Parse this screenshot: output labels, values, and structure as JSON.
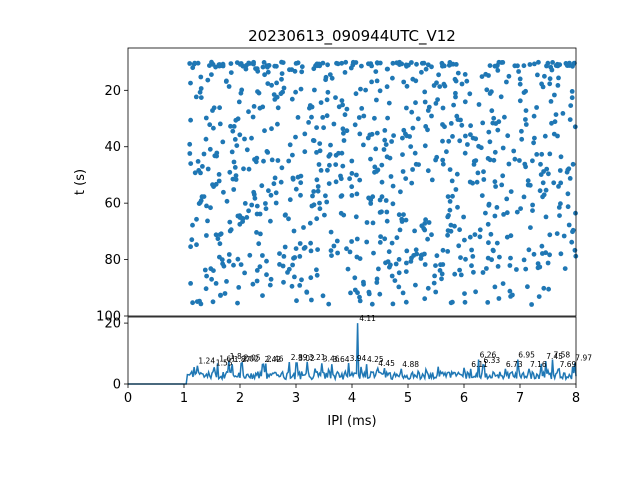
{
  "chart_data": [
    {
      "type": "scatter",
      "title": "20230613_090944UTC_V12",
      "xlabel": "",
      "ylabel": "t (s)",
      "xlim": [
        0,
        8
      ],
      "ylim": [
        100,
        5
      ],
      "y_inverted": true,
      "yticks": [
        "20",
        "40",
        "60",
        "80",
        "100"
      ],
      "marker_color": "#1f77b4",
      "grid": false,
      "n_points": 900,
      "x_range": [
        1.1,
        8.0
      ],
      "y_range": [
        10,
        96
      ]
    },
    {
      "type": "line",
      "title": "",
      "xlabel": "IPI (ms)",
      "ylabel": "",
      "xlim": [
        0,
        8
      ],
      "ylim": [
        0,
        22
      ],
      "xticks": [
        "0",
        "1",
        "2",
        "3",
        "4",
        "5",
        "6",
        "7",
        "8"
      ],
      "yticks": [
        "0",
        "20"
      ],
      "line_color": "#1f77b4",
      "peak_labels": [
        {
          "x": 1.24,
          "y": 6.0,
          "label": "1.24"
        },
        {
          "x": 1.55,
          "y": 5.5,
          "label": "1.55"
        },
        {
          "x": 1.61,
          "y": 6.8,
          "label": "1.61"
        },
        {
          "x": 1.8,
          "y": 7.5,
          "label": "1.8"
        },
        {
          "x": 1.87,
          "y": 6.5,
          "label": "1.87"
        },
        {
          "x": 2.02,
          "y": 6.8,
          "label": "2.02"
        },
        {
          "x": 2.05,
          "y": 7.0,
          "label": "2.05"
        },
        {
          "x": 2.42,
          "y": 6.5,
          "label": "2.42"
        },
        {
          "x": 2.46,
          "y": 6.7,
          "label": "2.46"
        },
        {
          "x": 2.89,
          "y": 7.2,
          "label": "2.89"
        },
        {
          "x": 3.02,
          "y": 6.9,
          "label": "3.02"
        },
        {
          "x": 3.21,
          "y": 7.3,
          "label": "3.21"
        },
        {
          "x": 3.46,
          "y": 6.8,
          "label": "3.46"
        },
        {
          "x": 3.64,
          "y": 6.5,
          "label": "3.64"
        },
        {
          "x": 3.94,
          "y": 6.9,
          "label": "3.94"
        },
        {
          "x": 4.11,
          "y": 20.0,
          "label": "4.11"
        },
        {
          "x": 4.25,
          "y": 6.5,
          "label": "4.25"
        },
        {
          "x": 4.45,
          "y": 5.2,
          "label": "4.45"
        },
        {
          "x": 4.88,
          "y": 5.0,
          "label": "4.88"
        },
        {
          "x": 6.11,
          "y": 5.0,
          "label": "6.11"
        },
        {
          "x": 6.26,
          "y": 8.0,
          "label": "6.26"
        },
        {
          "x": 6.33,
          "y": 6.3,
          "label": "6.33"
        },
        {
          "x": 6.73,
          "y": 5.0,
          "label": "6.73"
        },
        {
          "x": 6.95,
          "y": 8.0,
          "label": "6.95"
        },
        {
          "x": 7.16,
          "y": 5.0,
          "label": "7.16"
        },
        {
          "x": 7.45,
          "y": 7.5,
          "label": "7.45"
        },
        {
          "x": 7.58,
          "y": 8.0,
          "label": "7.58"
        },
        {
          "x": 7.69,
          "y": 5.0,
          "label": "7.69"
        },
        {
          "x": 7.97,
          "y": 7.0,
          "label": "7.97"
        }
      ]
    }
  ]
}
